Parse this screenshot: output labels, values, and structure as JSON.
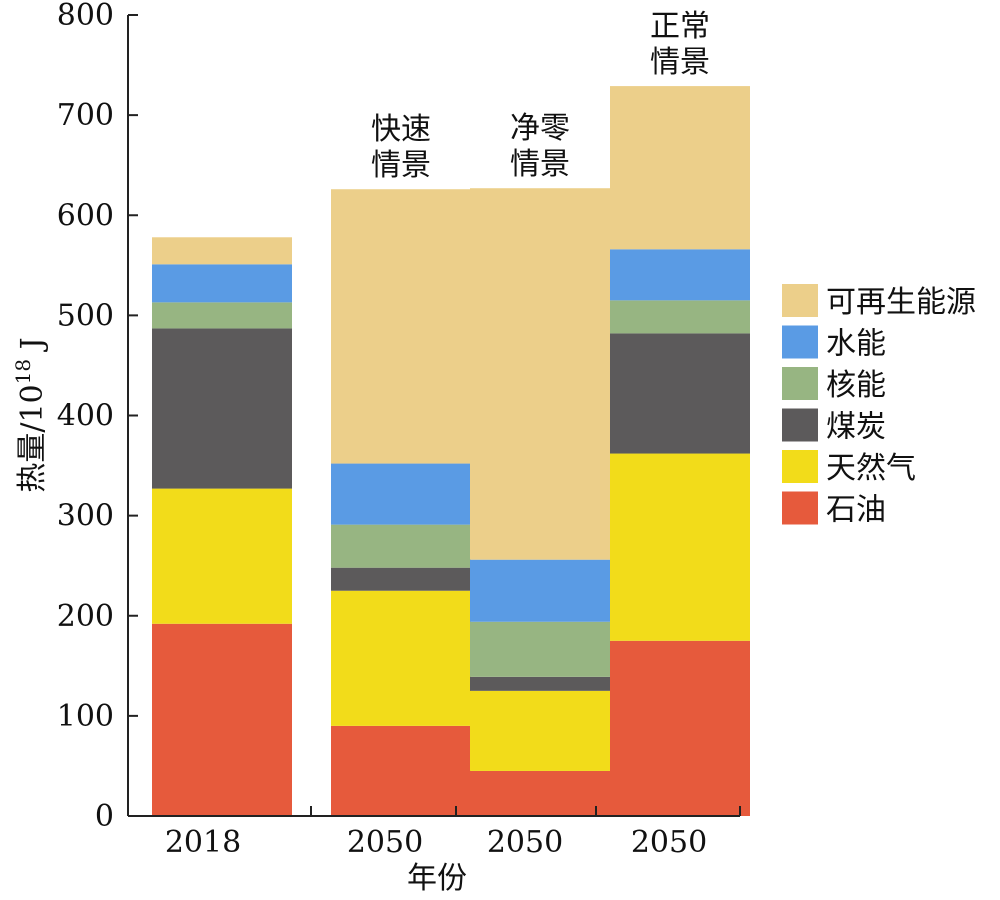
{
  "chart_data": {
    "type": "bar",
    "stacked": true,
    "categories": [
      "2018",
      "2050",
      "2050",
      "2050"
    ],
    "annotations": [
      "",
      "快速\n情景",
      "净零\n情景",
      "正常\n情景"
    ],
    "xlabel": "年份",
    "ylabel": "热量/10",
    "ylabel_sup": "18",
    "ylabel_unit": " J",
    "ylim": [
      0,
      800
    ],
    "yticks": [
      0,
      100,
      200,
      300,
      400,
      500,
      600,
      700,
      800
    ],
    "legend_position": "right",
    "grid": false,
    "series": [
      {
        "name": "石油",
        "color": "#e65a3c",
        "values": [
          192,
          90,
          45,
          175
        ]
      },
      {
        "name": "天然气",
        "color": "#f2dc1a",
        "values": [
          135,
          135,
          80,
          187
        ]
      },
      {
        "name": "煤炭",
        "color": "#5c5a5b",
        "values": [
          160,
          23,
          14,
          120
        ]
      },
      {
        "name": "核能",
        "color": "#97b582",
        "values": [
          26,
          43,
          55,
          33
        ]
      },
      {
        "name": "水能",
        "color": "#5a9be4",
        "values": [
          38,
          61,
          62,
          51
        ]
      },
      {
        "name": "可再生能源",
        "color": "#eccf8a",
        "values": [
          27,
          274,
          371,
          163
        ]
      }
    ],
    "legend_order": [
      "可再生能源",
      "水能",
      "核能",
      "煤炭",
      "天然气",
      "石油"
    ]
  }
}
